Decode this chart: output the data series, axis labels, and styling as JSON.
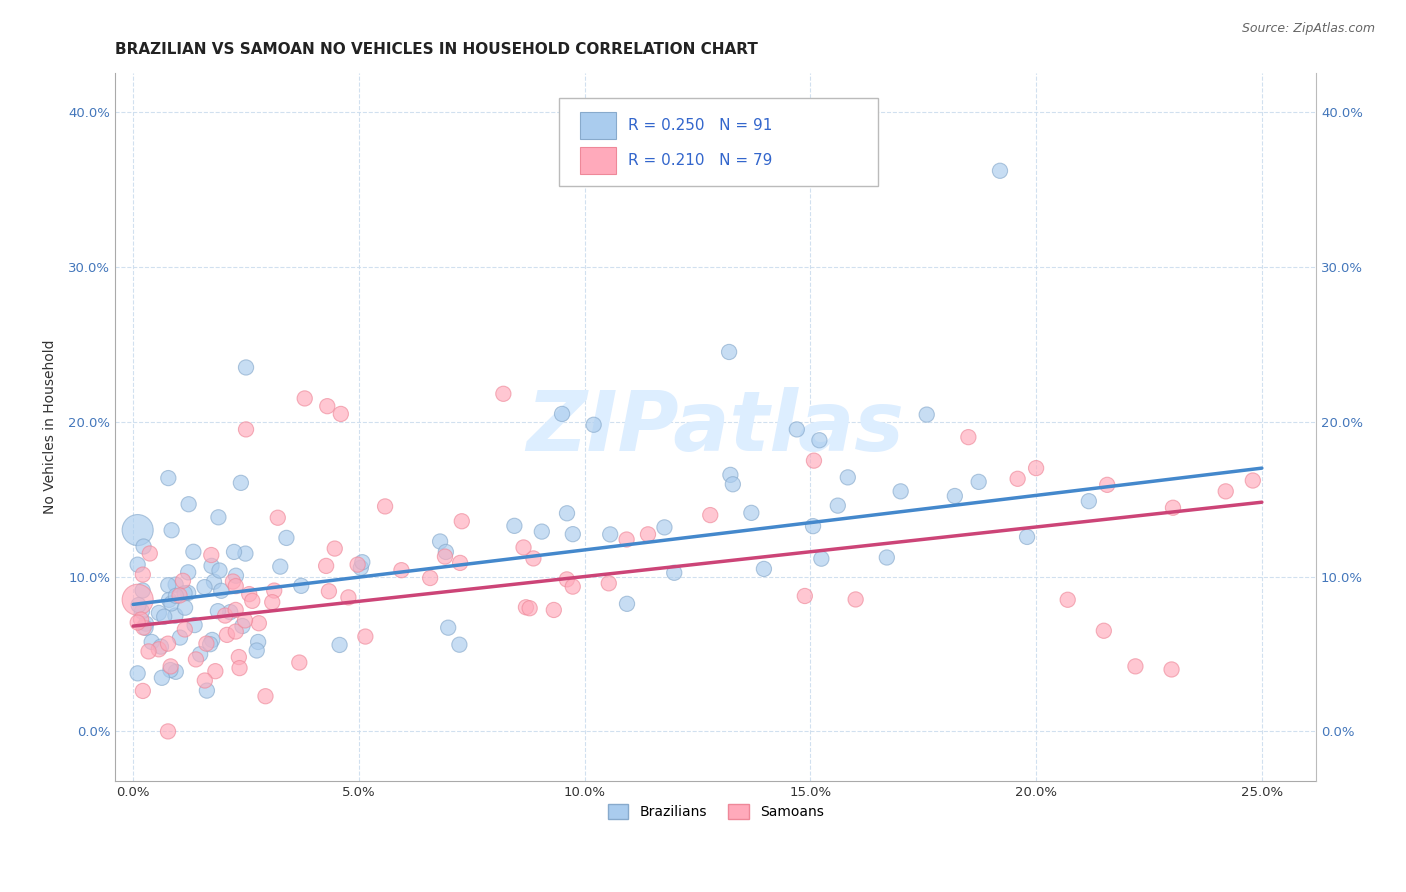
{
  "title": "BRAZILIAN VS SAMOAN NO VEHICLES IN HOUSEHOLD CORRELATION CHART",
  "source": "Source: ZipAtlas.com",
  "ylabel_label": "No Vehicles in Household",
  "legend_r_blue": "0.250",
  "legend_n_blue": "91",
  "legend_r_pink": "0.210",
  "legend_n_pink": "79",
  "blue_scatter_color": "#aaccee",
  "blue_scatter_edge": "#88aacc",
  "pink_scatter_color": "#ffaabb",
  "pink_scatter_edge": "#ee8899",
  "blue_line_color": "#4488cc",
  "pink_line_color": "#cc4477",
  "legend_text_color": "#3366cc",
  "watermark_color": "#ddeeff",
  "title_color": "#222222",
  "ylabel_color": "#333333",
  "tick_color_y": "#4477bb",
  "tick_color_x": "#333333",
  "grid_color": "#ccddee",
  "source_color": "#666666",
  "xmin": 0.0,
  "xmax": 0.25,
  "ymin": 0.0,
  "ymax": 0.4,
  "xticks": [
    0.0,
    0.05,
    0.1,
    0.15,
    0.2,
    0.25
  ],
  "yticks": [
    0.0,
    0.1,
    0.2,
    0.3,
    0.4
  ],
  "blue_line_x0": 0.0,
  "blue_line_x1": 0.25,
  "blue_line_y0": 0.082,
  "blue_line_y1": 0.17,
  "pink_line_x0": 0.0,
  "pink_line_x1": 0.25,
  "pink_line_y0": 0.068,
  "pink_line_y1": 0.148,
  "dot_size": 120,
  "dot_size_large": 500
}
